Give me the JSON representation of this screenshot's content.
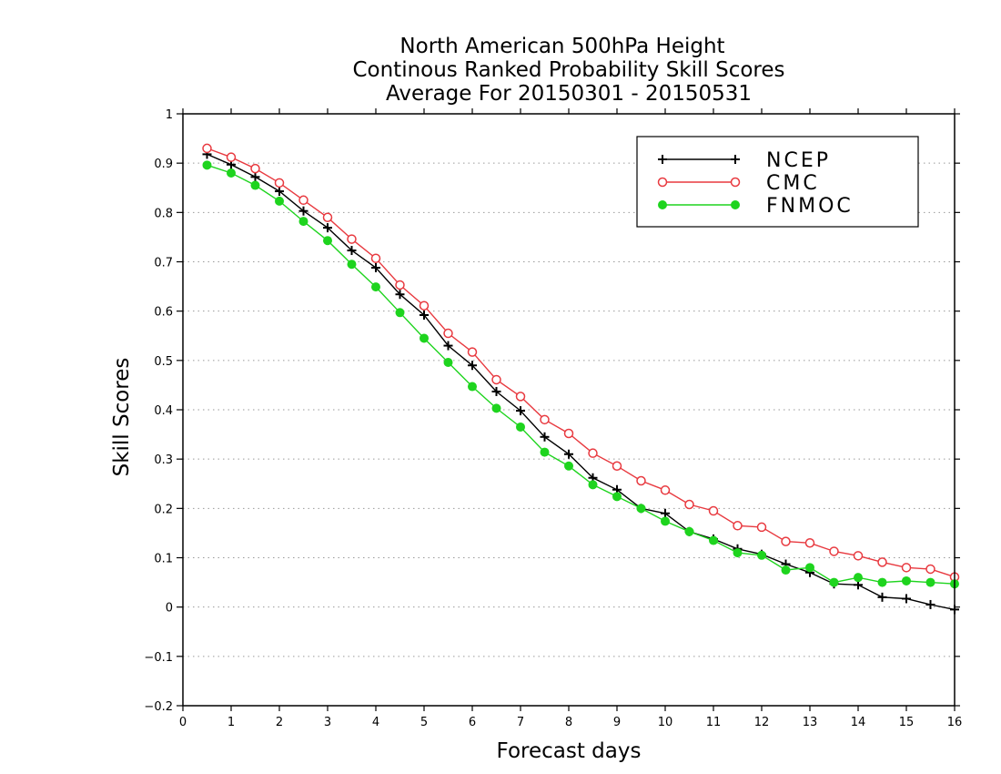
{
  "chart_data": {
    "type": "line",
    "title_lines": [
      "North American 500hPa Height",
      "Continous Ranked Probability Skill Scores",
      "Average For 20150301 - 20150531"
    ],
    "xlabel": "Forecast days",
    "ylabel": "Skill Scores",
    "xlim": [
      0,
      16
    ],
    "ylim": [
      -0.2,
      1
    ],
    "x_ticks": [
      0,
      1,
      2,
      3,
      4,
      5,
      6,
      7,
      8,
      9,
      10,
      11,
      12,
      13,
      14,
      15,
      16
    ],
    "y_ticks": [
      -0.2,
      -0.1,
      0,
      0.1,
      0.2,
      0.3,
      0.4,
      0.5,
      0.6,
      0.7,
      0.8,
      0.9,
      1
    ],
    "x_tick_labels": [
      "0",
      "1",
      "2",
      "3",
      "4",
      "5",
      "6",
      "7",
      "8",
      "9",
      "10",
      "11",
      "12",
      "13",
      "14",
      "15",
      "16"
    ],
    "y_tick_labels": [
      "−0.2",
      "−0.1",
      "0",
      "0.1",
      "0.2",
      "0.3",
      "0.4",
      "0.5",
      "0.6",
      "0.7",
      "0.8",
      "0.9",
      "1"
    ],
    "grid": "horizontal dotted",
    "legend_position": "top-right",
    "x": [
      0.5,
      1,
      1.5,
      2,
      2.5,
      3,
      3.5,
      4,
      4.5,
      5,
      5.5,
      6,
      6.5,
      7,
      7.5,
      8,
      8.5,
      9,
      9.5,
      10,
      10.5,
      11,
      11.5,
      12,
      12.5,
      13,
      13.5,
      14,
      14.5,
      15,
      15.5,
      16
    ],
    "series": [
      {
        "name": "NCEP",
        "color": "#000000",
        "marker": "plus",
        "values": [
          0.918,
          0.897,
          0.872,
          0.843,
          0.803,
          0.769,
          0.723,
          0.688,
          0.634,
          0.592,
          0.53,
          0.49,
          0.437,
          0.398,
          0.345,
          0.31,
          0.262,
          0.238,
          0.2,
          0.19,
          0.153,
          0.138,
          0.118,
          0.107,
          0.087,
          0.07,
          0.047,
          0.045,
          0.02,
          0.017,
          0.005,
          -0.005
        ]
      },
      {
        "name": "CMC",
        "color": "#e8393f",
        "marker": "open-circle",
        "values": [
          0.93,
          0.912,
          0.889,
          0.86,
          0.825,
          0.79,
          0.746,
          0.707,
          0.653,
          0.611,
          0.555,
          0.517,
          0.461,
          0.427,
          0.38,
          0.352,
          0.312,
          0.286,
          0.256,
          0.237,
          0.208,
          0.195,
          0.165,
          0.162,
          0.133,
          0.13,
          0.113,
          0.104,
          0.091,
          0.08,
          0.077,
          0.061
        ]
      },
      {
        "name": "FNMOC",
        "color": "#1ed41e",
        "marker": "filled-circle",
        "values": [
          0.896,
          0.88,
          0.855,
          0.823,
          0.782,
          0.743,
          0.695,
          0.649,
          0.597,
          0.545,
          0.496,
          0.447,
          0.403,
          0.365,
          0.314,
          0.286,
          0.248,
          0.224,
          0.2,
          0.174,
          0.153,
          0.135,
          0.11,
          0.105,
          0.075,
          0.08,
          0.05,
          0.06,
          0.05,
          0.053,
          0.05,
          0.047
        ]
      }
    ]
  }
}
